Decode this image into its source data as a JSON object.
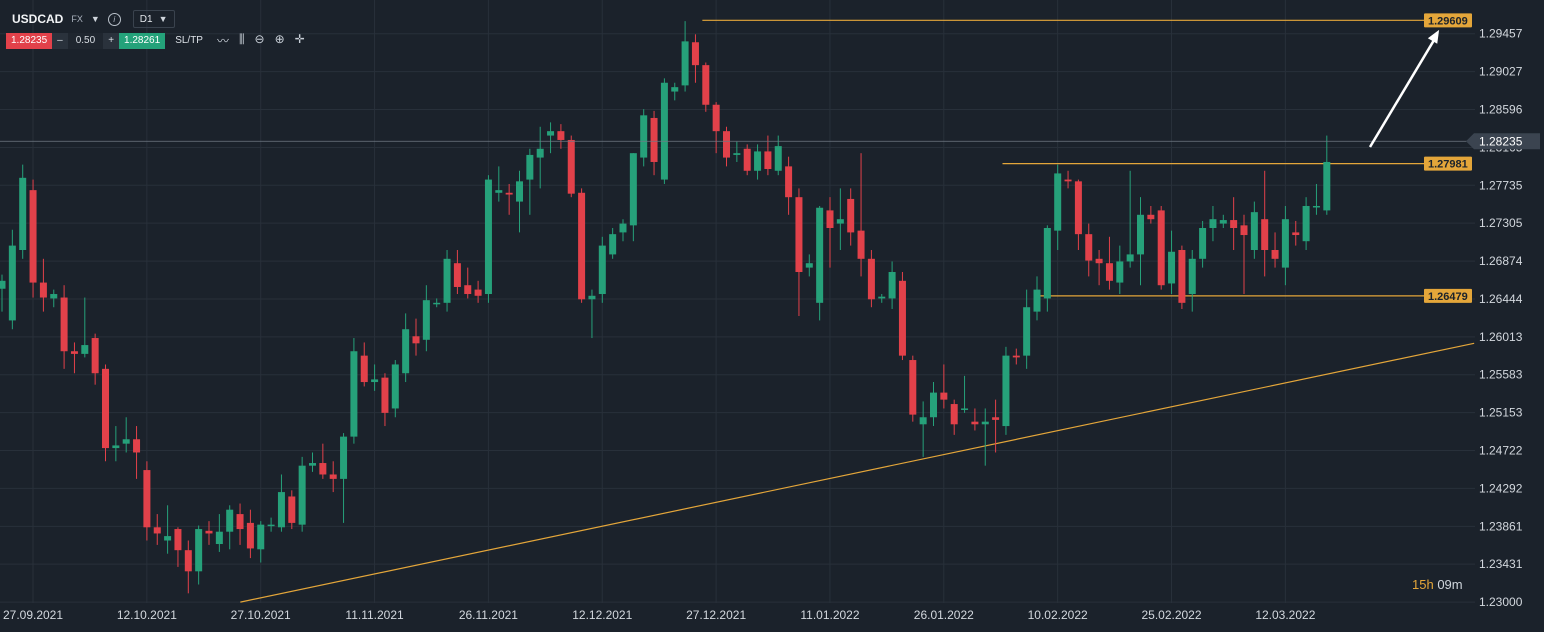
{
  "header": {
    "symbol": "USDCAD",
    "market": "FX",
    "timeframe": "D1",
    "bid": "1.28235",
    "quantity": "0.50",
    "ask": "1.28261",
    "minus": "–",
    "plus": "+",
    "sltp": "SL/TP"
  },
  "timer": {
    "hours": "15h",
    "minutes": "09m"
  },
  "colors": {
    "background": "#1b222b",
    "grid": "#28303a",
    "up": "#26a17a",
    "down": "#e2414a",
    "level": "#e4a63a",
    "axis_text": "#d3d8de"
  },
  "chart_data": {
    "type": "candlestick",
    "symbol": "USDCAD",
    "timeframe": "D1",
    "y_ticks": [
      "1.29457",
      "1.29027",
      "1.28596",
      "1.28165",
      "1.27735",
      "1.27305",
      "1.26874",
      "1.26444",
      "1.26013",
      "1.25583",
      "1.25153",
      "1.24722",
      "1.24292",
      "1.23861",
      "1.23431",
      "1.23000"
    ],
    "ylim": [
      1.2299,
      1.2984
    ],
    "x_ticks": [
      {
        "label": "27.09.2021",
        "index": 0
      },
      {
        "label": "12.10.2021",
        "index": 11
      },
      {
        "label": "27.10.2021",
        "index": 22
      },
      {
        "label": "11.11.2021",
        "index": 33
      },
      {
        "label": "26.11.2021",
        "index": 44
      },
      {
        "label": "12.12.2021",
        "index": 55
      },
      {
        "label": "27.12.2021",
        "index": 66
      },
      {
        "label": "11.01.2022",
        "index": 77
      },
      {
        "label": "26.01.2022",
        "index": 88
      },
      {
        "label": "10.02.2022",
        "index": 99
      },
      {
        "label": "25.02.2022",
        "index": 110
      },
      {
        "label": "12.03.2022",
        "index": 121
      }
    ],
    "current_price": "1.28235",
    "levels": [
      {
        "label": "1.29609",
        "value": 1.29609,
        "from_index": 61
      },
      {
        "label": "1.27981",
        "value": 1.27981,
        "from_index": 90
      },
      {
        "label": "1.26479",
        "value": 1.26479,
        "from_index": 93
      }
    ],
    "trendline": {
      "from": {
        "index": 21,
        "value": 1.23
      },
      "to": {
        "index": 129,
        "value": 1.2594
      }
    },
    "arrow": {
      "from": {
        "index": 120,
        "value": 1.2817
      },
      "to": {
        "index": 126,
        "value": 1.295
      }
    },
    "candles": [
      [
        1.2656,
        1.2665,
        1.263,
        1.2672
      ],
      [
        1.262,
        1.2705,
        1.261,
        1.2723
      ],
      [
        1.27,
        1.2782,
        1.269,
        1.2797
      ],
      [
        1.2768,
        1.2663,
        1.2646,
        1.278
      ],
      [
        1.2663,
        1.2646,
        1.263,
        1.269
      ],
      [
        1.2645,
        1.265,
        1.2635,
        1.2655
      ],
      [
        1.2646,
        1.2585,
        1.2565,
        1.266
      ],
      [
        1.2585,
        1.2582,
        1.256,
        1.2595
      ],
      [
        1.2582,
        1.2592,
        1.2578,
        1.2646
      ],
      [
        1.26,
        1.256,
        1.2547,
        1.2605
      ],
      [
        1.2565,
        1.2475,
        1.246,
        1.257
      ],
      [
        1.2475,
        1.2478,
        1.246,
        1.25
      ],
      [
        1.248,
        1.2485,
        1.247,
        1.251
      ],
      [
        1.2485,
        1.247,
        1.244,
        1.25
      ],
      [
        1.245,
        1.2385,
        1.237,
        1.246
      ],
      [
        1.2385,
        1.2378,
        1.2365,
        1.24
      ],
      [
        1.237,
        1.2375,
        1.2355,
        1.241
      ],
      [
        1.2383,
        1.2359,
        1.234,
        1.2385
      ],
      [
        1.2359,
        1.2335,
        1.231,
        1.237
      ],
      [
        1.2335,
        1.2383,
        1.232,
        1.2387
      ],
      [
        1.2381,
        1.2378,
        1.2365,
        1.2392
      ],
      [
        1.2366,
        1.238,
        1.2357,
        1.24
      ],
      [
        1.238,
        1.2405,
        1.236,
        1.241
      ],
      [
        1.24,
        1.2383,
        1.2365,
        1.2412
      ],
      [
        1.239,
        1.2361,
        1.235,
        1.2405
      ],
      [
        1.236,
        1.2388,
        1.2345,
        1.2392
      ],
      [
        1.2387,
        1.2388,
        1.238,
        1.2396
      ],
      [
        1.2385,
        1.2425,
        1.238,
        1.2445
      ],
      [
        1.242,
        1.239,
        1.2383,
        1.2427
      ],
      [
        1.2388,
        1.2455,
        1.238,
        1.2465
      ],
      [
        1.2455,
        1.2458,
        1.2448,
        1.247
      ],
      [
        1.2458,
        1.2445,
        1.244,
        1.248
      ],
      [
        1.2445,
        1.244,
        1.2425,
        1.246
      ],
      [
        1.244,
        1.2488,
        1.239,
        1.2492
      ],
      [
        1.2488,
        1.2585,
        1.248,
        1.26
      ],
      [
        1.258,
        1.255,
        1.2545,
        1.2595
      ],
      [
        1.255,
        1.2553,
        1.254,
        1.257
      ],
      [
        1.2555,
        1.2515,
        1.25,
        1.256
      ],
      [
        1.252,
        1.257,
        1.251,
        1.2575
      ],
      [
        1.256,
        1.261,
        1.255,
        1.2628
      ],
      [
        1.2602,
        1.2594,
        1.258,
        1.2622
      ],
      [
        1.2598,
        1.2643,
        1.2585,
        1.266
      ],
      [
        1.264,
        1.264,
        1.2635,
        1.2645
      ],
      [
        1.264,
        1.269,
        1.263,
        1.27
      ],
      [
        1.2685,
        1.2658,
        1.265,
        1.27
      ],
      [
        1.266,
        1.265,
        1.2645,
        1.268
      ],
      [
        1.2655,
        1.2648,
        1.264,
        1.2665
      ],
      [
        1.265,
        1.278,
        1.264,
        1.2785
      ],
      [
        1.2765,
        1.2768,
        1.2755,
        1.2795
      ],
      [
        1.2765,
        1.2763,
        1.274,
        1.2775
      ],
      [
        1.2755,
        1.2778,
        1.272,
        1.279
      ],
      [
        1.278,
        1.2808,
        1.274,
        1.2815
      ],
      [
        1.2805,
        1.2815,
        1.277,
        1.284
      ],
      [
        1.283,
        1.2835,
        1.281,
        1.2845
      ],
      [
        1.2835,
        1.2825,
        1.2815,
        1.2843
      ],
      [
        1.2825,
        1.2764,
        1.276,
        1.283
      ],
      [
        1.2765,
        1.2644,
        1.264,
        1.277
      ],
      [
        1.2644,
        1.2648,
        1.26,
        1.2655
      ],
      [
        1.265,
        1.2705,
        1.264,
        1.2715
      ],
      [
        1.2695,
        1.2718,
        1.269,
        1.2725
      ],
      [
        1.272,
        1.273,
        1.271,
        1.2735
      ],
      [
        1.2728,
        1.281,
        1.271,
        1.281
      ],
      [
        1.2805,
        1.2853,
        1.2795,
        1.286
      ],
      [
        1.285,
        1.28,
        1.2785,
        1.2858
      ],
      [
        1.278,
        1.289,
        1.2775,
        1.2895
      ],
      [
        1.288,
        1.2885,
        1.287,
        1.289
      ],
      [
        1.2887,
        1.2937,
        1.288,
        1.296
      ],
      [
        1.2936,
        1.291,
        1.289,
        1.2945
      ],
      [
        1.291,
        1.2865,
        1.2857,
        1.2913
      ],
      [
        1.2865,
        1.2835,
        1.281,
        1.2868
      ],
      [
        1.2835,
        1.2805,
        1.2795,
        1.284
      ],
      [
        1.2808,
        1.281,
        1.28,
        1.2823
      ],
      [
        1.2815,
        1.279,
        1.2785,
        1.282
      ],
      [
        1.279,
        1.2812,
        1.278,
        1.282
      ],
      [
        1.2812,
        1.2792,
        1.2785,
        1.283
      ],
      [
        1.279,
        1.2818,
        1.2785,
        1.283
      ],
      [
        1.2795,
        1.276,
        1.274,
        1.2806
      ],
      [
        1.276,
        1.2675,
        1.2625,
        1.277
      ],
      [
        1.268,
        1.2685,
        1.267,
        1.2695
      ],
      [
        1.264,
        1.2748,
        1.262,
        1.275
      ],
      [
        1.2745,
        1.2725,
        1.268,
        1.276
      ],
      [
        1.273,
        1.2735,
        1.27,
        1.277
      ],
      [
        1.2758,
        1.272,
        1.2705,
        1.277
      ],
      [
        1.2722,
        1.269,
        1.267,
        1.281
      ],
      [
        1.269,
        1.2644,
        1.2635,
        1.27
      ],
      [
        1.2645,
        1.2647,
        1.264,
        1.265
      ],
      [
        1.2645,
        1.2675,
        1.2633,
        1.2687
      ],
      [
        1.2665,
        1.258,
        1.2575,
        1.2675
      ],
      [
        1.2575,
        1.2513,
        1.2505,
        1.258
      ],
      [
        1.2502,
        1.251,
        1.2465,
        1.2528
      ],
      [
        1.251,
        1.2538,
        1.25,
        1.255
      ],
      [
        1.2538,
        1.253,
        1.252,
        1.257
      ],
      [
        1.2525,
        1.2502,
        1.249,
        1.253
      ],
      [
        1.252,
        1.252,
        1.2515,
        1.2557
      ],
      [
        1.2505,
        1.2502,
        1.2495,
        1.252
      ],
      [
        1.2502,
        1.2505,
        1.2455,
        1.252
      ],
      [
        1.251,
        1.2507,
        1.247,
        1.253
      ],
      [
        1.25,
        1.258,
        1.249,
        1.259
      ],
      [
        1.258,
        1.2578,
        1.257,
        1.2588
      ],
      [
        1.258,
        1.2635,
        1.2565,
        1.2655
      ],
      [
        1.263,
        1.2655,
        1.262,
        1.267
      ],
      [
        1.2645,
        1.2725,
        1.263,
        1.2728
      ],
      [
        1.2722,
        1.2787,
        1.27,
        1.2797
      ],
      [
        1.278,
        1.2778,
        1.277,
        1.279
      ],
      [
        1.2778,
        1.2718,
        1.27,
        1.278
      ],
      [
        1.2718,
        1.2688,
        1.267,
        1.273
      ],
      [
        1.269,
        1.2685,
        1.266,
        1.27
      ],
      [
        1.2685,
        1.2665,
        1.2655,
        1.2715
      ],
      [
        1.2663,
        1.2687,
        1.265,
        1.2705
      ],
      [
        1.2687,
        1.2695,
        1.268,
        1.279
      ],
      [
        1.2695,
        1.274,
        1.266,
        1.276
      ],
      [
        1.274,
        1.2735,
        1.273,
        1.275
      ],
      [
        1.2745,
        1.266,
        1.2655,
        1.275
      ],
      [
        1.2662,
        1.2698,
        1.265,
        1.2722
      ],
      [
        1.27,
        1.264,
        1.2633,
        1.2705
      ],
      [
        1.265,
        1.269,
        1.263,
        1.27
      ],
      [
        1.269,
        1.2725,
        1.268,
        1.2733
      ],
      [
        1.2725,
        1.2735,
        1.271,
        1.275
      ],
      [
        1.273,
        1.2734,
        1.2725,
        1.274
      ],
      [
        1.2734,
        1.2725,
        1.27,
        1.276
      ],
      [
        1.2728,
        1.2717,
        1.265,
        1.274
      ],
      [
        1.27,
        1.2743,
        1.269,
        1.2755
      ],
      [
        1.2735,
        1.27,
        1.267,
        1.279
      ],
      [
        1.27,
        1.269,
        1.268,
        1.272
      ],
      [
        1.268,
        1.2735,
        1.266,
        1.275
      ],
      [
        1.272,
        1.2717,
        1.2705,
        1.2733
      ],
      [
        1.271,
        1.275,
        1.27,
        1.276
      ],
      [
        1.275,
        1.275,
        1.274,
        1.2775
      ],
      [
        1.2745,
        1.28,
        1.274,
        1.283
      ]
    ]
  }
}
